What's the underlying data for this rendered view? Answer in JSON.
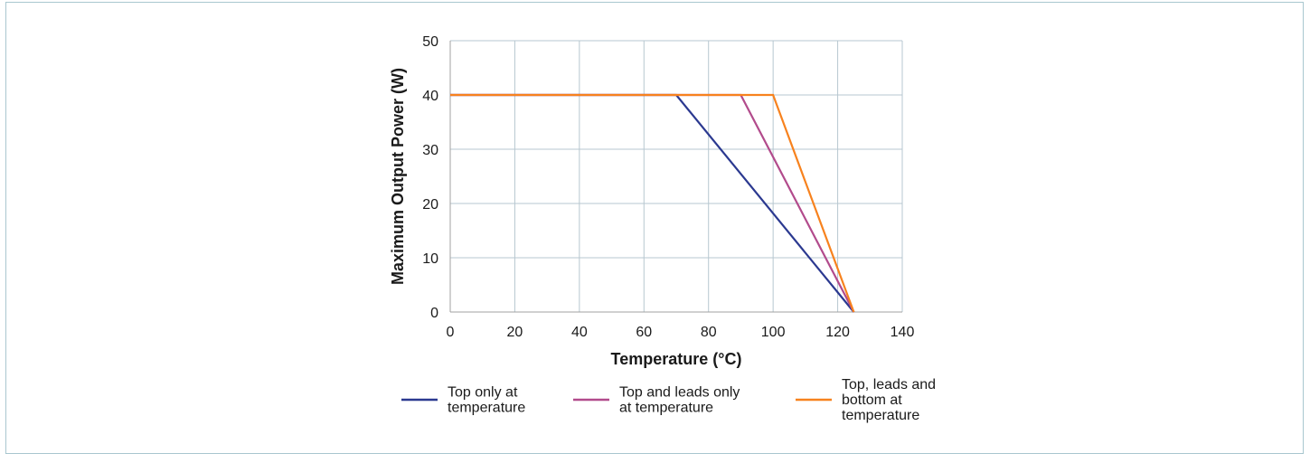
{
  "chart_data": {
    "type": "line",
    "title": "",
    "xlabel": "Temperature (°C)",
    "ylabel": "Maximum Output Power (W)",
    "xlim": [
      0,
      140
    ],
    "ylim": [
      0,
      50
    ],
    "xticks": [
      0,
      20,
      40,
      60,
      80,
      100,
      120,
      140
    ],
    "yticks": [
      0,
      10,
      20,
      30,
      40,
      50
    ],
    "grid": true,
    "legend_position": "bottom",
    "series": [
      {
        "name": "Top only at temperature",
        "legend_lines": [
          "Top only at",
          "temperature"
        ],
        "color": "#2b3990",
        "points": [
          [
            0,
            40
          ],
          [
            70,
            40
          ],
          [
            125,
            0
          ]
        ]
      },
      {
        "name": "Top and leads only at temperature",
        "legend_lines": [
          "Top and leads only",
          "at temperature"
        ],
        "color": "#b24b8c",
        "points": [
          [
            0,
            40
          ],
          [
            90,
            40
          ],
          [
            125,
            0
          ]
        ]
      },
      {
        "name": "Top, leads and bottom at temperature",
        "legend_lines": [
          "Top, leads and",
          "bottom at",
          "temperature"
        ],
        "color": "#f7821e",
        "points": [
          [
            0,
            40
          ],
          [
            100,
            40
          ],
          [
            125,
            0
          ]
        ]
      }
    ],
    "colors": {
      "grid": "#b7c7d0",
      "axis": "#a0a0a0"
    }
  }
}
